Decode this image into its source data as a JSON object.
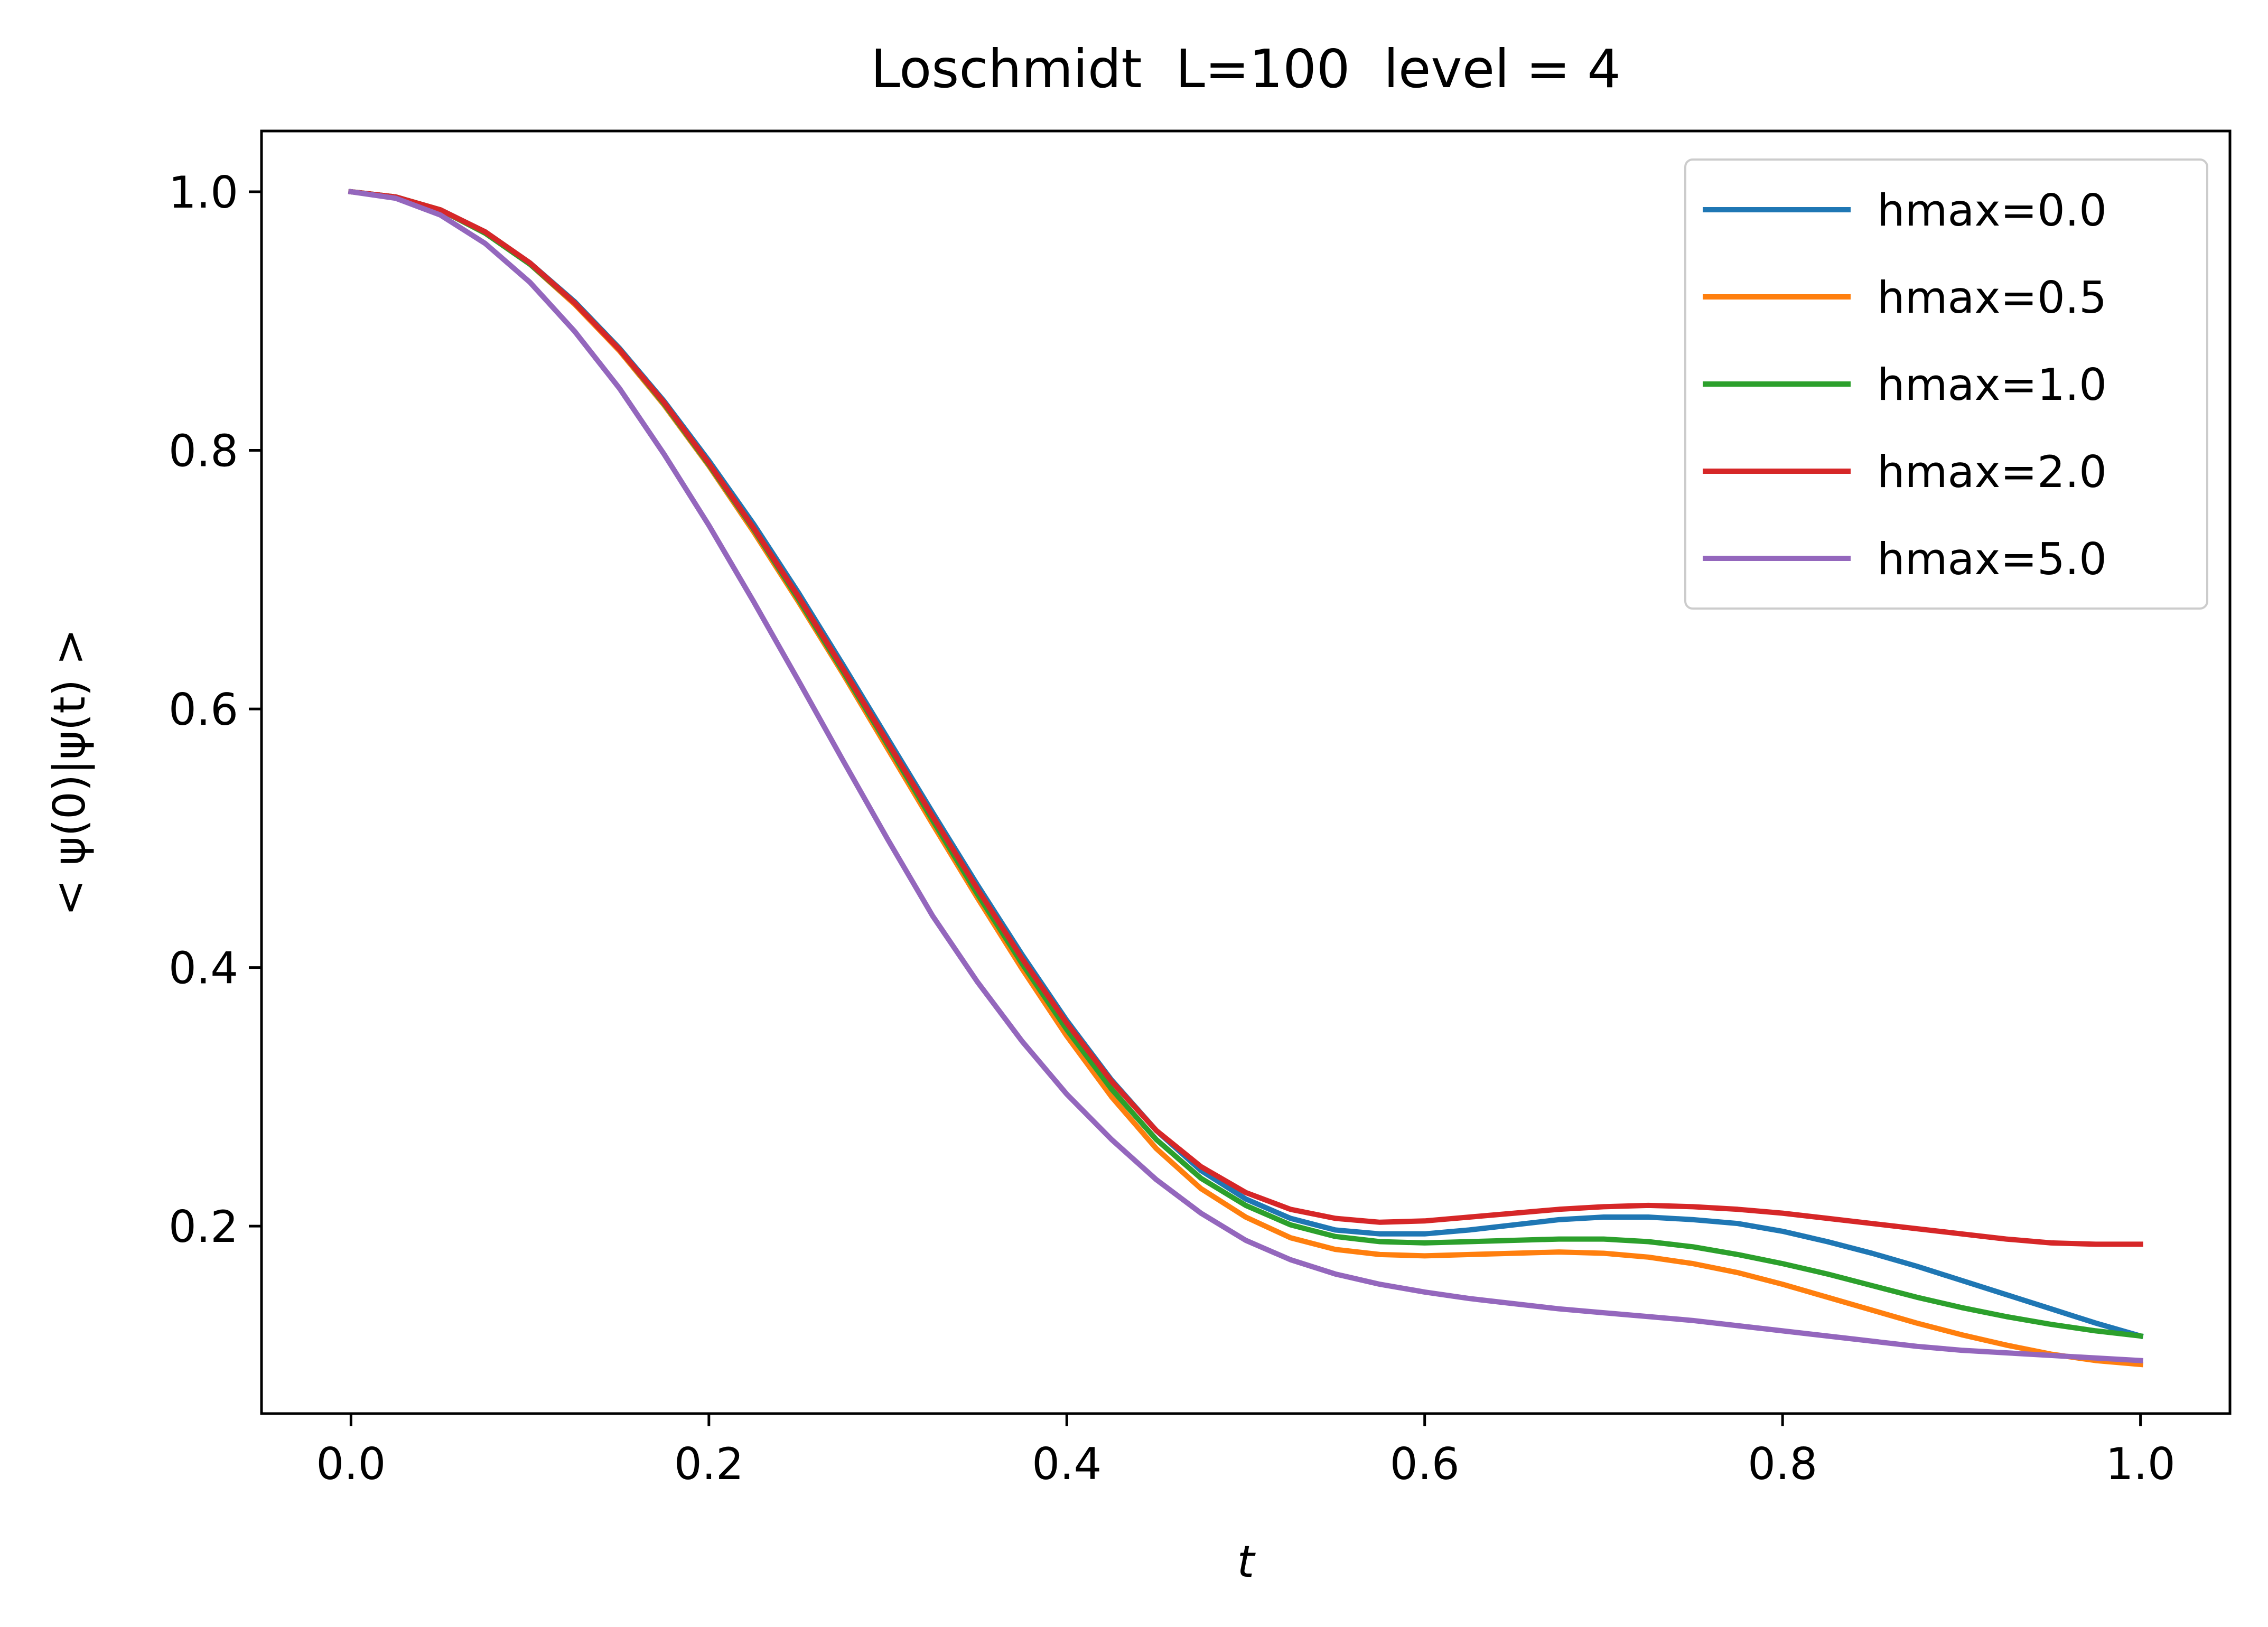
{
  "chart_data": {
    "type": "line",
    "title": "Loschmidt  L=100  level = 4",
    "xlabel": "t",
    "ylabel": "< ψ(0)|ψ(t) >",
    "xlim": [
      -0.05,
      1.05
    ],
    "ylim": [
      0.055,
      1.047
    ],
    "xticks": [
      0.0,
      0.2,
      0.4,
      0.6,
      0.8,
      1.0
    ],
    "xtick_labels": [
      "0.0",
      "0.2",
      "0.4",
      "0.6",
      "0.8",
      "1.0"
    ],
    "yticks": [
      0.2,
      0.4,
      0.6,
      0.8,
      1.0
    ],
    "ytick_labels": [
      "0.2",
      "0.4",
      "0.6",
      "0.8",
      "1.0"
    ],
    "grid": false,
    "legend_position": "top-right",
    "x": [
      0.0,
      0.025,
      0.05,
      0.075,
      0.1,
      0.125,
      0.15,
      0.175,
      0.2,
      0.225,
      0.25,
      0.275,
      0.3,
      0.325,
      0.35,
      0.375,
      0.4,
      0.425,
      0.45,
      0.475,
      0.5,
      0.525,
      0.55,
      0.575,
      0.6,
      0.625,
      0.65,
      0.675,
      0.7,
      0.725,
      0.75,
      0.775,
      0.8,
      0.825,
      0.85,
      0.875,
      0.9,
      0.925,
      0.95,
      0.975,
      1.0
    ],
    "series": [
      {
        "name": "hmax=0.0",
        "color": "#1f77b4",
        "values": [
          1.0,
          0.996,
          0.986,
          0.969,
          0.945,
          0.915,
          0.879,
          0.838,
          0.792,
          0.743,
          0.69,
          0.634,
          0.577,
          0.52,
          0.464,
          0.41,
          0.359,
          0.313,
          0.274,
          0.243,
          0.221,
          0.206,
          0.197,
          0.194,
          0.194,
          0.197,
          0.201,
          0.205,
          0.207,
          0.207,
          0.205,
          0.202,
          0.196,
          0.188,
          0.179,
          0.169,
          0.158,
          0.147,
          0.136,
          0.125,
          0.115
        ]
      },
      {
        "name": "hmax=0.5",
        "color": "#ff7f0e",
        "values": [
          1.0,
          0.996,
          0.986,
          0.968,
          0.944,
          0.913,
          0.877,
          0.835,
          0.788,
          0.737,
          0.683,
          0.627,
          0.569,
          0.511,
          0.454,
          0.399,
          0.347,
          0.3,
          0.26,
          0.229,
          0.207,
          0.191,
          0.182,
          0.178,
          0.177,
          0.178,
          0.179,
          0.18,
          0.179,
          0.176,
          0.171,
          0.164,
          0.155,
          0.145,
          0.135,
          0.125,
          0.116,
          0.108,
          0.101,
          0.096,
          0.093
        ]
      },
      {
        "name": "hmax=1.0",
        "color": "#2ca02c",
        "values": [
          1.0,
          0.996,
          0.986,
          0.968,
          0.944,
          0.914,
          0.878,
          0.836,
          0.789,
          0.739,
          0.685,
          0.629,
          0.572,
          0.514,
          0.457,
          0.403,
          0.352,
          0.306,
          0.267,
          0.237,
          0.216,
          0.201,
          0.192,
          0.188,
          0.187,
          0.188,
          0.189,
          0.19,
          0.19,
          0.188,
          0.184,
          0.178,
          0.171,
          0.163,
          0.154,
          0.145,
          0.137,
          0.13,
          0.124,
          0.119,
          0.115
        ]
      },
      {
        "name": "hmax=2.0",
        "color": "#d62728",
        "values": [
          1.0,
          0.996,
          0.986,
          0.969,
          0.945,
          0.914,
          0.878,
          0.837,
          0.79,
          0.74,
          0.687,
          0.631,
          0.574,
          0.517,
          0.461,
          0.407,
          0.357,
          0.312,
          0.274,
          0.246,
          0.226,
          0.213,
          0.206,
          0.203,
          0.204,
          0.207,
          0.21,
          0.213,
          0.215,
          0.216,
          0.215,
          0.213,
          0.21,
          0.206,
          0.202,
          0.198,
          0.194,
          0.19,
          0.187,
          0.186,
          0.186
        ]
      },
      {
        "name": "hmax=5.0",
        "color": "#9467bd",
        "values": [
          1.0,
          0.995,
          0.982,
          0.96,
          0.93,
          0.892,
          0.848,
          0.797,
          0.742,
          0.683,
          0.622,
          0.56,
          0.499,
          0.44,
          0.389,
          0.343,
          0.302,
          0.267,
          0.236,
          0.21,
          0.189,
          0.174,
          0.163,
          0.155,
          0.149,
          0.144,
          0.14,
          0.136,
          0.133,
          0.13,
          0.127,
          0.123,
          0.119,
          0.115,
          0.111,
          0.107,
          0.104,
          0.102,
          0.1,
          0.098,
          0.096
        ]
      }
    ]
  }
}
